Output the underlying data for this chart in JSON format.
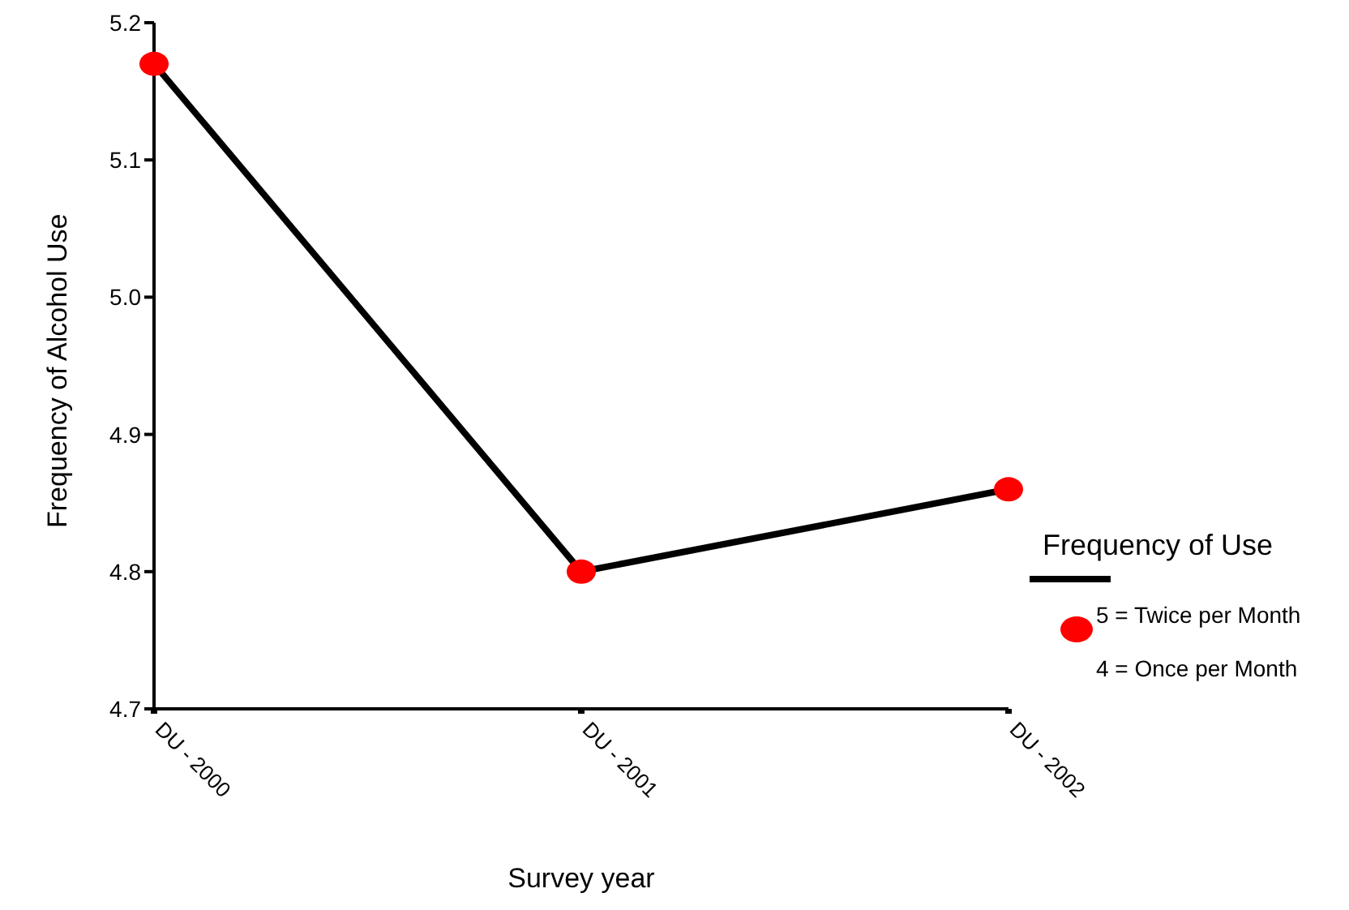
{
  "chart_data": {
    "type": "line",
    "xlabel": "Survey year",
    "ylabel": "Frequency of Alcohol Use",
    "legend_title": "Frequency of Use",
    "categories": [
      "DU - 2000",
      "DU - 2001",
      "DU - 2002"
    ],
    "series": [
      {
        "color": "#000000",
        "colors": [
          "#ff0000",
          "#ff0000",
          "#ff0000"
        ],
        "values": [
          5.17,
          4.8,
          4.86
        ]
      }
    ],
    "ylim": [
      4.7,
      5.2
    ],
    "yticks": [
      4.7,
      4.8,
      4.9,
      {
        "value": 5,
        "label": "5.0"
      },
      5.1,
      5.2
    ],
    "annotations": [
      "5 = Twice per Month",
      "4 = Once per Month"
    ],
    "grid": false,
    "marker": "circle",
    "line_style": "solid"
  }
}
